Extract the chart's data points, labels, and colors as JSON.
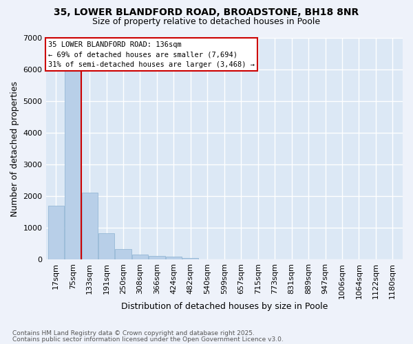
{
  "title_line1": "35, LOWER BLANDFORD ROAD, BROADSTONE, BH18 8NR",
  "title_line2": "Size of property relative to detached houses in Poole",
  "xlabel": "Distribution of detached houses by size in Poole",
  "ylabel": "Number of detached properties",
  "bar_color": "#b8cfe8",
  "bar_edge_color": "#8ab0d0",
  "bg_color": "#dce8f5",
  "fig_color": "#eef2fa",
  "vline_color": "#cc0000",
  "annotation_border_color": "#cc0000",
  "categories": [
    "17sqm",
    "75sqm",
    "133sqm",
    "191sqm",
    "250sqm",
    "308sqm",
    "366sqm",
    "424sqm",
    "482sqm",
    "540sqm",
    "599sqm",
    "657sqm",
    "715sqm",
    "773sqm",
    "831sqm",
    "889sqm",
    "947sqm",
    "1006sqm",
    "1064sqm",
    "1122sqm",
    "1180sqm"
  ],
  "values": [
    1700,
    6050,
    2100,
    820,
    330,
    160,
    105,
    85,
    55,
    10,
    0,
    0,
    0,
    0,
    0,
    0,
    0,
    0,
    0,
    0,
    0
  ],
  "property_label": "35 LOWER BLANDFORD ROAD: 136sqm",
  "pct_smaller": "← 69% of detached houses are smaller (7,694)",
  "pct_larger": "31% of semi-detached houses are larger (3,468) →",
  "vline_x": 1.5,
  "ylim_max": 7000,
  "yticks": [
    0,
    1000,
    2000,
    3000,
    4000,
    5000,
    6000,
    7000
  ],
  "footer_line1": "Contains HM Land Registry data © Crown copyright and database right 2025.",
  "footer_line2": "Contains public sector information licensed under the Open Government Licence v3.0."
}
